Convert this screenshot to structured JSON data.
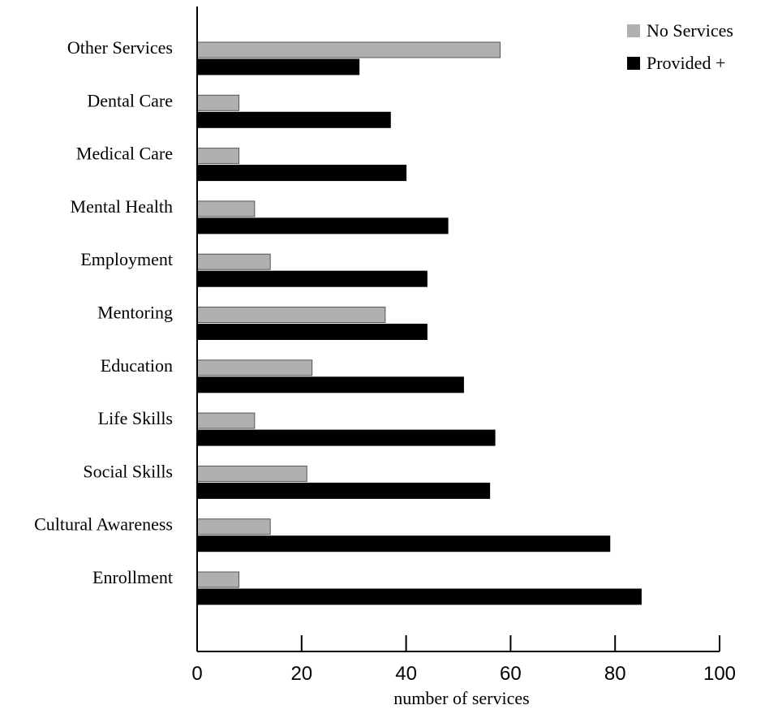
{
  "chart_data": {
    "type": "bar",
    "orientation": "horizontal",
    "categories": [
      "Other Services",
      "Dental Care",
      "Medical Care",
      "Mental Health",
      "Employment",
      "Mentoring",
      "Education",
      "Life Skills",
      "Social Skills",
      "Cultural Awareness",
      "Enrollment"
    ],
    "series": [
      {
        "name": "No Services",
        "color": "#b0b0b0",
        "values": [
          58,
          8,
          8,
          11,
          14,
          36,
          22,
          11,
          21,
          14,
          8
        ]
      },
      {
        "name": "Provided +",
        "color": "#000000",
        "values": [
          31,
          37,
          40,
          48,
          44,
          44,
          51,
          57,
          56,
          79,
          85
        ]
      }
    ],
    "xlabel": "number of services",
    "xlim": [
      0,
      100
    ],
    "xticks": [
      "0",
      "20",
      "40",
      "60",
      "80",
      "100"
    ],
    "grid": false,
    "legend_position": "top-right"
  }
}
